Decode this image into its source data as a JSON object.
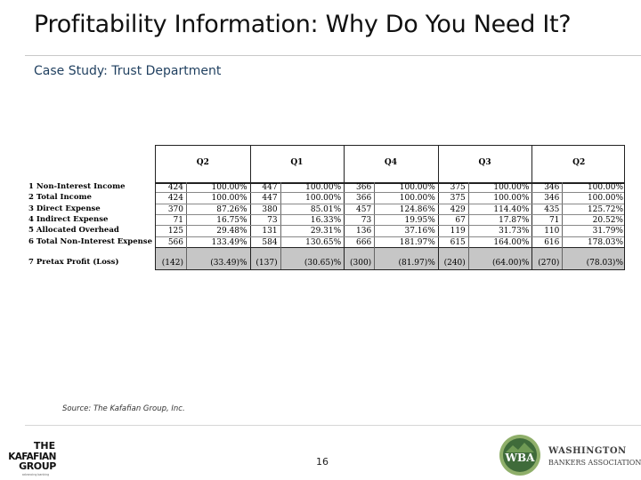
{
  "slide": {
    "title": "Profitability Information: Why Do You Need It?",
    "subtitle": "Case Study: Trust Department",
    "source": "Source: The Kafafian Group, Inc.",
    "page_number": "16"
  },
  "table": {
    "quarters": [
      "Q2",
      "Q1",
      "Q4",
      "Q3",
      "Q2"
    ],
    "rows": [
      {
        "label": "1 Non-Interest Income",
        "cells": [
          "424",
          "100.00%",
          "447",
          "100.00%",
          "366",
          "100.00%",
          "375",
          "100.00%",
          "346",
          "100.00%"
        ]
      },
      {
        "label": "2    Total Income",
        "cells": [
          "424",
          "100.00%",
          "447",
          "100.00%",
          "366",
          "100.00%",
          "375",
          "100.00%",
          "346",
          "100.00%"
        ]
      },
      {
        "label": "3 Direct Expense",
        "cells": [
          "370",
          "87.26%",
          "380",
          "85.01%",
          "457",
          "124.86%",
          "429",
          "114.40%",
          "435",
          "125.72%"
        ]
      },
      {
        "label": "4 Indirect Expense",
        "cells": [
          "71",
          "16.75%",
          "73",
          "16.33%",
          "73",
          "19.95%",
          "67",
          "17.87%",
          "71",
          "20.52%"
        ]
      },
      {
        "label": "5 Allocated Overhead",
        "cells": [
          "125",
          "29.48%",
          "131",
          "29.31%",
          "136",
          "37.16%",
          "119",
          "31.73%",
          "110",
          "31.79%"
        ]
      },
      {
        "label": "6    Total Non-Interest  Expense",
        "cells": [
          "566",
          "133.49%",
          "584",
          "130.65%",
          "666",
          "181.97%",
          "615",
          "164.00%",
          "616",
          "178.03%"
        ]
      }
    ],
    "pretax": {
      "label": "7 Pretax Profit (Loss)",
      "cells": [
        "(142)",
        "(33.49)%",
        "(137)",
        "(30.65)%",
        "(300)",
        "(81.97)%",
        "(240)",
        "(64.00)%",
        "(270)",
        "(78.03)%"
      ]
    }
  },
  "logos": {
    "left": {
      "line1": "THE",
      "line2": "KAFAFIAN",
      "line3": "GROUP",
      "tagline": "advancing banking"
    },
    "right": {
      "mark": "WBA",
      "line1": "WASHINGTON",
      "line2": "BANKERS ASSOCIATION"
    }
  },
  "colors": {
    "wba_green": "#3f6b3a",
    "wba_light": "#8faf6a",
    "subtitle_blue": "#1f3f5f"
  }
}
